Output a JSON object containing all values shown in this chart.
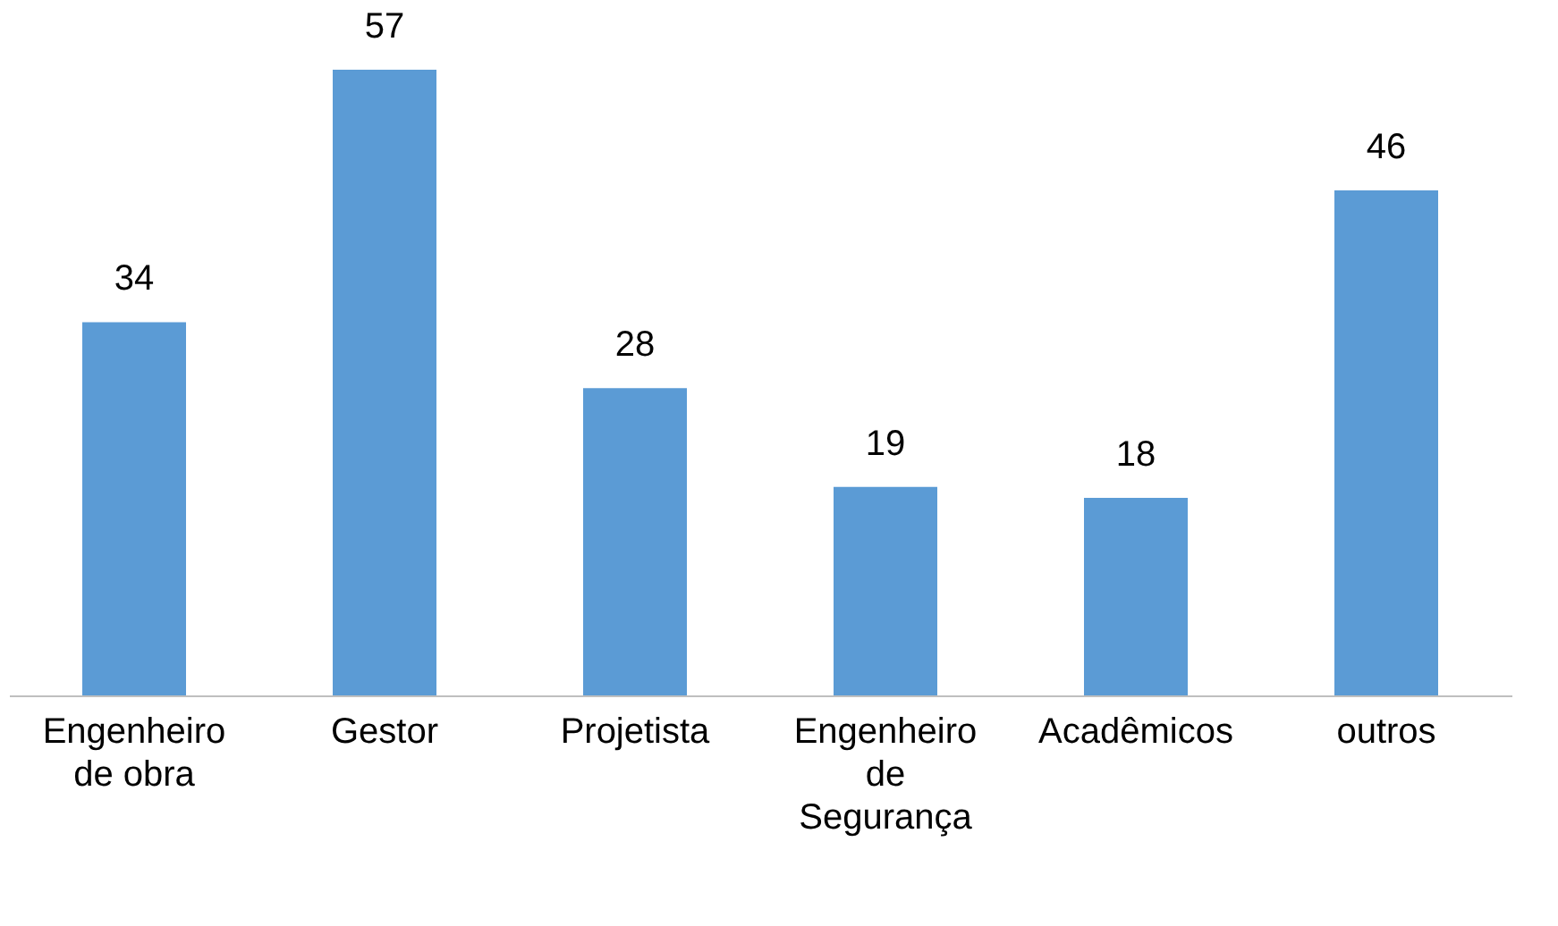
{
  "chart_data": {
    "type": "bar",
    "categories": [
      "Engenheiro de obra",
      "Gestor",
      "Projetista",
      "Engenheiro de Segurança",
      "Acadêmicos",
      "outros"
    ],
    "values": [
      34,
      57,
      28,
      19,
      18,
      46
    ],
    "color": "#5b9bd5",
    "data_labels": true
  }
}
